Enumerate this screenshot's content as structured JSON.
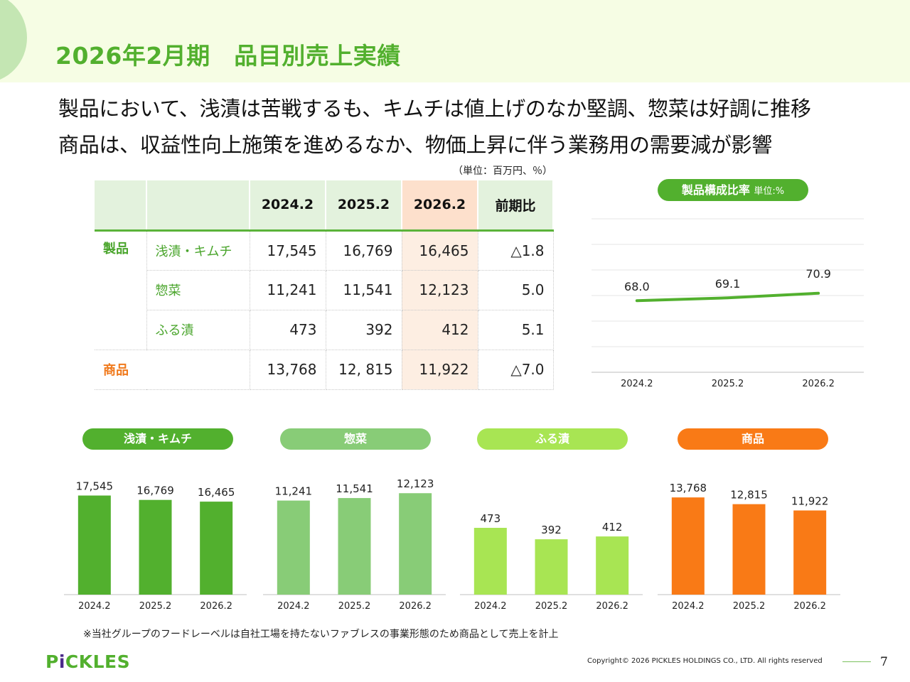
{
  "header": {
    "title": "2026年2月期　品目別売上実績"
  },
  "lead": {
    "line1": "製品において、浅漬は苦戦するも、キムチは値上げのなか堅調、惣菜は好調に推移",
    "line2": "商品は、収益性向上施策を進めるなか、物価上昇に伴う業務用の需要減が影響"
  },
  "table": {
    "unit_note": "（単位：百万円、％）",
    "headers": [
      "",
      "",
      "2024.2",
      "2025.2",
      "2026.2",
      "前期比"
    ],
    "section_products": "製品",
    "section_goods": "商品",
    "rows": [
      {
        "label": "浅漬・キムチ",
        "v2024": "17,545",
        "v2025": "16,769",
        "v2026": "16,465",
        "yoy": "△1.8"
      },
      {
        "label": "惣菜",
        "v2024": "11,241",
        "v2025": "11,541",
        "v2026": "12,123",
        "yoy": "5.0"
      },
      {
        "label": "ふる漬",
        "v2024": "473",
        "v2025": "392",
        "v2026": "412",
        "yoy": "5.1"
      }
    ],
    "goods_row": {
      "v2024": "13,768",
      "v2025": "12, 815",
      "v2026": "11,922",
      "yoy": "△7.0"
    }
  },
  "ratio_chart": {
    "title": "製品構成比率",
    "unit": "単位:%"
  },
  "colors": {
    "green": "#52b02e",
    "light_green": "#88cc77",
    "lime": "#a8e553",
    "orange": "#f97a16"
  },
  "chart_data": [
    {
      "type": "line",
      "title": "製品構成比率 単位:%",
      "categories": [
        "2024.2",
        "2025.2",
        "2026.2"
      ],
      "values": [
        68.0,
        69.1,
        70.9
      ],
      "labels": [
        "68.0",
        "69.1",
        "70.9"
      ],
      "ylim": [
        0,
        100
      ],
      "grid": true,
      "color": "#52b02e"
    },
    {
      "type": "bar",
      "title": "浅漬・キムチ",
      "categories": [
        "2024.2",
        "2025.2",
        "2026.2"
      ],
      "values": [
        17545,
        16769,
        16465
      ],
      "labels": [
        "17,545",
        "16,769",
        "16,465"
      ],
      "ylim": [
        0,
        20000
      ],
      "color": "#52b02e"
    },
    {
      "type": "bar",
      "title": "惣菜",
      "categories": [
        "2024.2",
        "2025.2",
        "2026.2"
      ],
      "values": [
        11241,
        11541,
        12123
      ],
      "labels": [
        "11,241",
        "11,541",
        "12,123"
      ],
      "ylim": [
        0,
        13500
      ],
      "color": "#88cc77"
    },
    {
      "type": "bar",
      "title": "ふる漬",
      "categories": [
        "2024.2",
        "2025.2",
        "2026.2"
      ],
      "values": [
        473,
        392,
        412
      ],
      "labels": [
        "473",
        "392",
        "412"
      ],
      "ylim": [
        0,
        800
      ],
      "color": "#a8e553"
    },
    {
      "type": "bar",
      "title": "商品",
      "categories": [
        "2024.2",
        "2025.2",
        "2026.2"
      ],
      "values": [
        13768,
        12815,
        11922
      ],
      "labels": [
        "13,768",
        "12,815",
        "11,922"
      ],
      "ylim": [
        0,
        16000
      ],
      "color": "#f97a16"
    }
  ],
  "footnote": "※当社グループのフードレーベルは自社工場を持たないファブレスの事業形態のため商品として売上を計上",
  "footer": {
    "logo_pre": "P",
    "logo_mark": "i",
    "logo_post": "CKLES",
    "copyright": "Copyright© 2026 PICKLES HOLDINGS CO., LTD. All rights reserved",
    "page": "7"
  }
}
